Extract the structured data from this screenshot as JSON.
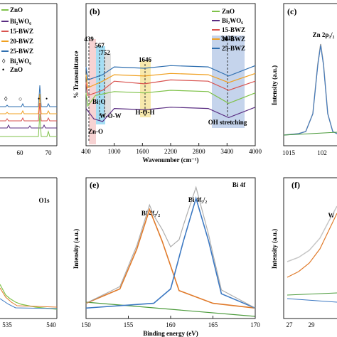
{
  "colors": {
    "zno": "#7fc24a",
    "bi2wo6": "#5a2d82",
    "bwz15": "#d9534f",
    "bwz20": "#f0a020",
    "bwz25": "#2f6fb0",
    "fit_orange": "#e07a2a",
    "fit_blue": "#3b78c2",
    "fit_green": "#4c9b3c",
    "raw_gray": "#9a9a9a",
    "band_blue": "#9fb7e0",
    "band_yellow": "#f3df8a"
  },
  "panel_a": {
    "legend": [
      "ZnO",
      "Bi₂WO₆",
      "15-BWZ",
      "20-BWZ",
      "25-BWZ",
      "Bi₂WO₆",
      "ZnO"
    ],
    "ticks": [
      "60",
      "70"
    ],
    "markers": [
      "◊",
      "○",
      "•"
    ]
  },
  "panel_b": {
    "letter": "(b)",
    "ylabel": "% Transmittance",
    "xlabel": "Wavenumber (cm⁻¹)",
    "legend": [
      "ZnO",
      "Bi₂WO₆",
      "15-BWZ",
      "20-BWZ",
      "25-BWZ"
    ],
    "peaks": [
      "439",
      "567",
      "752",
      "1646",
      "3435"
    ],
    "annotations": [
      "Bi-O",
      "W-O-W",
      "H-O-H",
      "OH stretching",
      "Zn-O"
    ],
    "xticks": [
      "400",
      "1000",
      "1600",
      "2200",
      "2800",
      "3400",
      "4000"
    ]
  },
  "panel_c": {
    "letter": "(c)",
    "ylabel": "Intensity (a.u.)",
    "peak_label": "Zn 2p₃/₂",
    "xticks": [
      "1015",
      "102"
    ]
  },
  "panel_d": {
    "peak_label": "O1s",
    "xticks": [
      "535",
      "540"
    ]
  },
  "panel_e": {
    "letter": "(e)",
    "title": "Bi 4f",
    "ylabel": "Intensity (a.u.)",
    "xlabel": "Binding energy (eV)",
    "peak_left": "Bi 4f₇/₂",
    "peak_right": "Bi 4f₅/₂",
    "xticks": [
      "150",
      "155",
      "160",
      "165",
      "170"
    ]
  },
  "panel_f": {
    "letter": "(f)",
    "peak_label": "W",
    "ylabel": "Intensity (a.u.)",
    "xticks": [
      "27",
      "29"
    ]
  },
  "chart_data": [
    {
      "type": "line",
      "title": "",
      "xlabel": "Wavenumber (cm⁻¹)",
      "ylabel": "% Transmittance",
      "xlim": [
        400,
        4000
      ],
      "series": [
        {
          "name": "ZnO",
          "x": [
            400,
            439,
            600,
            1000,
            1646,
            2200,
            3000,
            3435,
            4000
          ],
          "y": [
            4.2,
            3.2,
            4.0,
            4.3,
            4.2,
            4.4,
            4.3,
            3.4,
            4.2
          ]
        },
        {
          "name": "Bi₂WO₆",
          "x": [
            400,
            567,
            752,
            1000,
            1646,
            2200,
            3000,
            3435,
            4000
          ],
          "y": [
            3.0,
            2.2,
            2.0,
            3.0,
            2.9,
            3.1,
            3.0,
            2.3,
            3.1
          ]
        },
        {
          "name": "15-BWZ",
          "x": [
            400,
            439,
            752,
            1000,
            1646,
            2200,
            3000,
            3435,
            4000
          ],
          "y": [
            5.0,
            4.0,
            4.4,
            5.1,
            4.9,
            5.2,
            5.1,
            4.4,
            5.1
          ]
        },
        {
          "name": "20-BWZ",
          "x": [
            400,
            439,
            752,
            1000,
            1646,
            2200,
            3000,
            3435,
            4000
          ],
          "y": [
            5.6,
            4.6,
            5.1,
            5.6,
            5.5,
            5.7,
            5.6,
            5.0,
            5.7
          ]
        },
        {
          "name": "25-BWZ",
          "x": [
            400,
            439,
            752,
            1000,
            1646,
            2200,
            3000,
            3435,
            4000
          ],
          "y": [
            6.2,
            5.2,
            5.6,
            6.2,
            6.1,
            6.3,
            6.2,
            5.5,
            6.3
          ]
        }
      ]
    },
    {
      "type": "line",
      "title": "Bi 4f",
      "xlabel": "Binding energy (eV)",
      "ylabel": "Intensity (a.u.)",
      "xlim": [
        150,
        170
      ],
      "series": [
        {
          "name": "Bi 4f₇/₂",
          "x": [
            150,
            154,
            156,
            157.5,
            159,
            161,
            165,
            170
          ],
          "y": [
            0.6,
            1.5,
            4.0,
            6.5,
            4.5,
            1.4,
            0.6,
            0.3
          ]
        },
        {
          "name": "Bi 4f₅/₂",
          "x": [
            150,
            158,
            160,
            161.5,
            163,
            164.5,
            166,
            170
          ],
          "y": [
            0.3,
            0.6,
            1.5,
            4.5,
            7.2,
            4.5,
            1.2,
            0.3
          ]
        }
      ]
    }
  ]
}
